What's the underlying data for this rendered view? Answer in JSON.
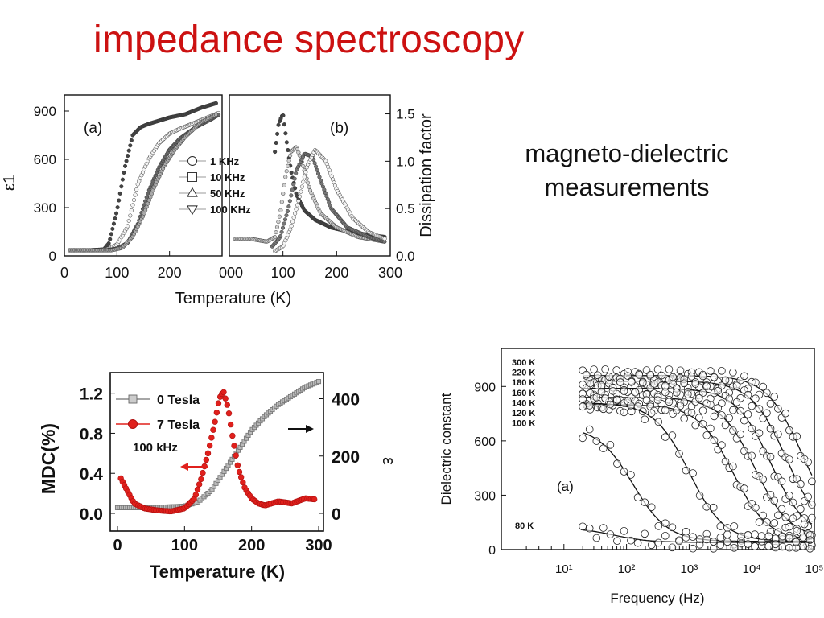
{
  "slide": {
    "title": "impedance spectroscopy",
    "caption_line1": "magneto-dielectric",
    "caption_line2": "measurements"
  },
  "colors": {
    "title": "#cc1111",
    "red_series": "#e0201c",
    "gray_series": "#9a9a9a"
  },
  "chart_data": [
    {
      "id": "a",
      "type": "scatter",
      "panel_label": "(a)",
      "xlabel": "Temperature (K)",
      "ylabel": "ε1",
      "xlim": [
        0,
        300
      ],
      "ylim": [
        0,
        1000
      ],
      "xticks": [
        0,
        100,
        200,
        300
      ],
      "xtick_labels": [
        "0",
        "100",
        "200",
        "300"
      ],
      "yticks": [
        0,
        300,
        600,
        900
      ],
      "series": [
        {
          "name": "1 KHz",
          "marker": "circle",
          "x": [
            10,
            50,
            75,
            85,
            100,
            115,
            130,
            145,
            160,
            180,
            200,
            230,
            260,
            290
          ],
          "y": [
            35,
            35,
            40,
            80,
            280,
            550,
            750,
            800,
            820,
            840,
            860,
            880,
            920,
            950
          ]
        },
        {
          "name": "10 KHz",
          "marker": "square",
          "x": [
            10,
            50,
            80,
            100,
            120,
            140,
            160,
            180,
            200,
            220,
            250,
            280,
            295
          ],
          "y": [
            35,
            35,
            40,
            70,
            180,
            450,
            600,
            700,
            760,
            790,
            830,
            870,
            890
          ]
        },
        {
          "name": "50 KHz",
          "marker": "triangle-up",
          "x": [
            10,
            80,
            100,
            120,
            140,
            160,
            180,
            200,
            220,
            250,
            280,
            295
          ],
          "y": [
            35,
            35,
            45,
            80,
            200,
            400,
            550,
            660,
            730,
            800,
            850,
            880
          ]
        },
        {
          "name": "100 KHz",
          "marker": "triangle-down",
          "x": [
            10,
            90,
            110,
            130,
            150,
            170,
            190,
            210,
            230,
            260,
            290
          ],
          "y": [
            35,
            35,
            50,
            120,
            250,
            420,
            560,
            660,
            740,
            830,
            880
          ]
        }
      ]
    },
    {
      "id": "b",
      "type": "scatter",
      "panel_label": "(b)",
      "ylabel": "Dissipation factor",
      "xlim": [
        0,
        300
      ],
      "ylim": [
        0,
        1.7
      ],
      "xticks": [
        0,
        100,
        200,
        300
      ],
      "xtick_labels": [
        "000",
        "100",
        "200",
        "300"
      ],
      "yticks": [
        0.0,
        0.5,
        1.0,
        1.5
      ],
      "ytick_labels": [
        "0.0",
        "0.5",
        "1.0",
        "1.5"
      ],
      "series": [
        {
          "name": "1 KHz",
          "x": [
            85,
            92,
            100,
            107,
            115,
            125,
            140,
            160,
            190,
            220,
            260,
            290
          ],
          "y": [
            1.1,
            1.4,
            1.5,
            1.2,
            0.9,
            0.65,
            0.48,
            0.38,
            0.3,
            0.26,
            0.22,
            0.2
          ]
        },
        {
          "name": "10 KHz",
          "x": [
            10,
            40,
            70,
            85,
            95,
            105,
            115,
            125,
            135,
            150,
            170,
            200,
            240,
            290
          ],
          "y": [
            0.18,
            0.18,
            0.15,
            0.2,
            0.45,
            0.85,
            1.1,
            1.15,
            1.0,
            0.7,
            0.45,
            0.3,
            0.2,
            0.15
          ]
        },
        {
          "name": "50 KHz",
          "x": [
            80,
            95,
            110,
            125,
            140,
            155,
            170,
            190,
            220,
            260,
            290
          ],
          "y": [
            0.1,
            0.2,
            0.5,
            0.9,
            1.08,
            1.05,
            0.8,
            0.5,
            0.3,
            0.2,
            0.15
          ]
        },
        {
          "name": "100 KHz",
          "x": [
            85,
            100,
            115,
            130,
            145,
            160,
            180,
            200,
            230,
            260,
            290
          ],
          "y": [
            0.05,
            0.1,
            0.3,
            0.6,
            0.95,
            1.12,
            1.0,
            0.7,
            0.4,
            0.25,
            0.18
          ]
        }
      ]
    },
    {
      "id": "c",
      "type": "scatter",
      "xlabel": "Temperature (K)",
      "ylabel": "MDC(%)",
      "y2label": "ε",
      "annotation": "100 kHz",
      "xlim": [
        0,
        300
      ],
      "ylim": [
        0,
        1.35
      ],
      "xticks": [
        0,
        100,
        200,
        300
      ],
      "yticks": [
        0.0,
        0.4,
        0.8,
        1.2
      ],
      "ytick_labels": [
        "0.0",
        "0.4",
        "0.8",
        "1.2"
      ],
      "y2lim": [
        0,
        480
      ],
      "y2ticks": [
        0,
        200,
        400
      ],
      "series": [
        {
          "name": "0 Tesla",
          "axis": "right",
          "marker": "square",
          "x": [
            0,
            50,
            100,
            120,
            140,
            160,
            180,
            200,
            220,
            240,
            260,
            280,
            300
          ],
          "y": [
            20,
            20,
            25,
            40,
            80,
            150,
            220,
            290,
            340,
            380,
            410,
            440,
            460
          ]
        },
        {
          "name": "7 Tesla",
          "axis": "left",
          "marker": "circle",
          "x": [
            5,
            15,
            25,
            40,
            60,
            80,
            100,
            115,
            125,
            135,
            145,
            152,
            158,
            165,
            172,
            180,
            190,
            200,
            210,
            220,
            240,
            260,
            280,
            295
          ],
          "y": [
            0.35,
            0.22,
            0.1,
            0.05,
            0.03,
            0.02,
            0.05,
            0.15,
            0.35,
            0.6,
            0.9,
            1.15,
            1.22,
            1.05,
            0.75,
            0.45,
            0.25,
            0.15,
            0.1,
            0.08,
            0.12,
            0.1,
            0.15,
            0.14
          ]
        }
      ]
    },
    {
      "id": "d",
      "type": "scatter",
      "panel_label": "(a)",
      "xlabel": "Frequency (Hz)",
      "ylabel": "Dielectric constant",
      "xscale": "log",
      "xlim_log10": [
        0,
        5
      ],
      "ylim": [
        0,
        1110
      ],
      "xticks_log10": [
        1,
        2,
        3,
        4,
        5
      ],
      "xtick_labels": [
        "10¹",
        "10²",
        "10³",
        "10⁴",
        "10⁵"
      ],
      "yticks": [
        0,
        300,
        600,
        900
      ],
      "legend_labels": [
        "300 K",
        "220 K",
        "180 K",
        "160 K",
        "140 K",
        "120 K",
        "100 K"
      ],
      "label_80K": "80 K",
      "series": [
        {
          "name": "300 K",
          "eps_s": 960,
          "eps_inf": 100,
          "log10_relax_freq": 4.8
        },
        {
          "name": "220 K",
          "eps_s": 930,
          "eps_inf": 80,
          "log10_relax_freq": 4.55
        },
        {
          "name": "180 K",
          "eps_s": 890,
          "eps_inf": 70,
          "log10_relax_freq": 4.3
        },
        {
          "name": "160 K",
          "eps_s": 840,
          "eps_inf": 60,
          "log10_relax_freq": 4.05
        },
        {
          "name": "140 K",
          "eps_s": 800,
          "eps_inf": 50,
          "log10_relax_freq": 3.7
        },
        {
          "name": "120 K",
          "eps_s": 810,
          "eps_inf": 45,
          "log10_relax_freq": 3.0
        },
        {
          "name": "100 K",
          "eps_s": 680,
          "eps_inf": 45,
          "log10_relax_freq": 2.1
        },
        {
          "name": "80 K",
          "eps_s": 120,
          "eps_inf": 40,
          "log10_relax_freq": 1.8
        }
      ]
    }
  ]
}
